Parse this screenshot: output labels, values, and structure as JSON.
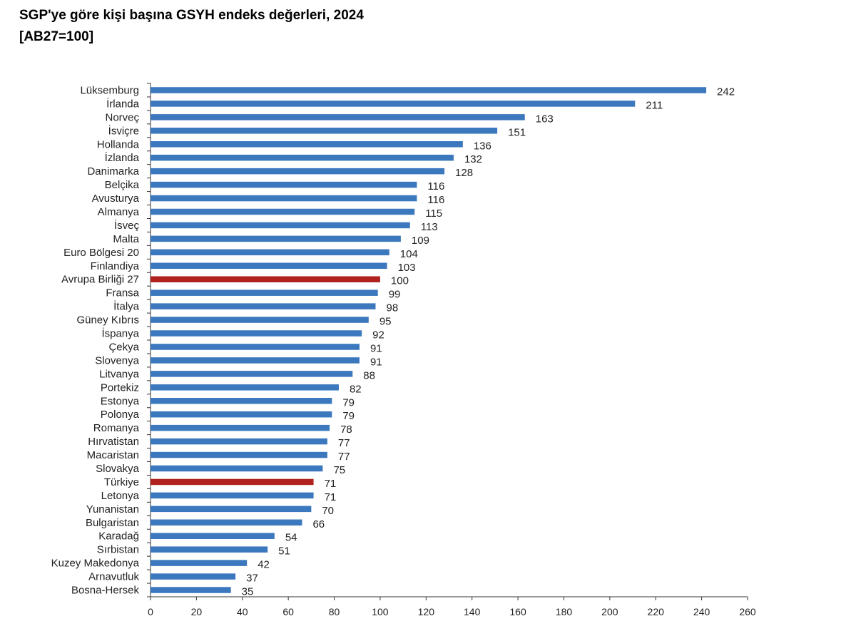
{
  "chart_data": {
    "type": "bar",
    "orientation": "horizontal",
    "title": "SGP'ye göre kişi başına GSYH endeks değerleri, 2024",
    "subtitle": "[AB27=100]",
    "xlabel": "",
    "ylabel": "",
    "xlim": [
      0,
      260
    ],
    "xticks": [
      0,
      20,
      40,
      60,
      80,
      100,
      120,
      140,
      160,
      180,
      200,
      220,
      240,
      260
    ],
    "grid": false,
    "colors": {
      "default": "#3b78bd",
      "highlight": "#b1221f"
    },
    "categories": [
      "Lüksemburg",
      "İrlanda",
      "Norveç",
      "İsviçre",
      "Hollanda",
      "İzlanda",
      "Danimarka",
      "Belçika",
      "Avusturya",
      "Almanya",
      "İsveç",
      "Malta",
      "Euro Bölgesi 20",
      "Finlandiya",
      "Avrupa Birliği 27",
      "Fransa",
      "İtalya",
      "Güney Kıbrıs",
      "İspanya",
      "Çekya",
      "Slovenya",
      "Litvanya",
      "Portekiz",
      "Estonya",
      "Polonya",
      "Romanya",
      "Hırvatistan",
      "Macaristan",
      "Slovakya",
      "Türkiye",
      "Letonya",
      "Yunanistan",
      "Bulgaristan",
      "Karadağ",
      "Sırbistan",
      "Kuzey Makedonya",
      "Arnavutluk",
      "Bosna-Hersek"
    ],
    "values": [
      242,
      211,
      163,
      151,
      136,
      132,
      128,
      116,
      116,
      115,
      113,
      109,
      104,
      103,
      100,
      99,
      98,
      95,
      92,
      91,
      91,
      88,
      82,
      79,
      79,
      78,
      77,
      77,
      75,
      71,
      71,
      70,
      66,
      54,
      51,
      42,
      37,
      35
    ],
    "highlighted": [
      "Avrupa Birliği 27",
      "Türkiye"
    ]
  }
}
